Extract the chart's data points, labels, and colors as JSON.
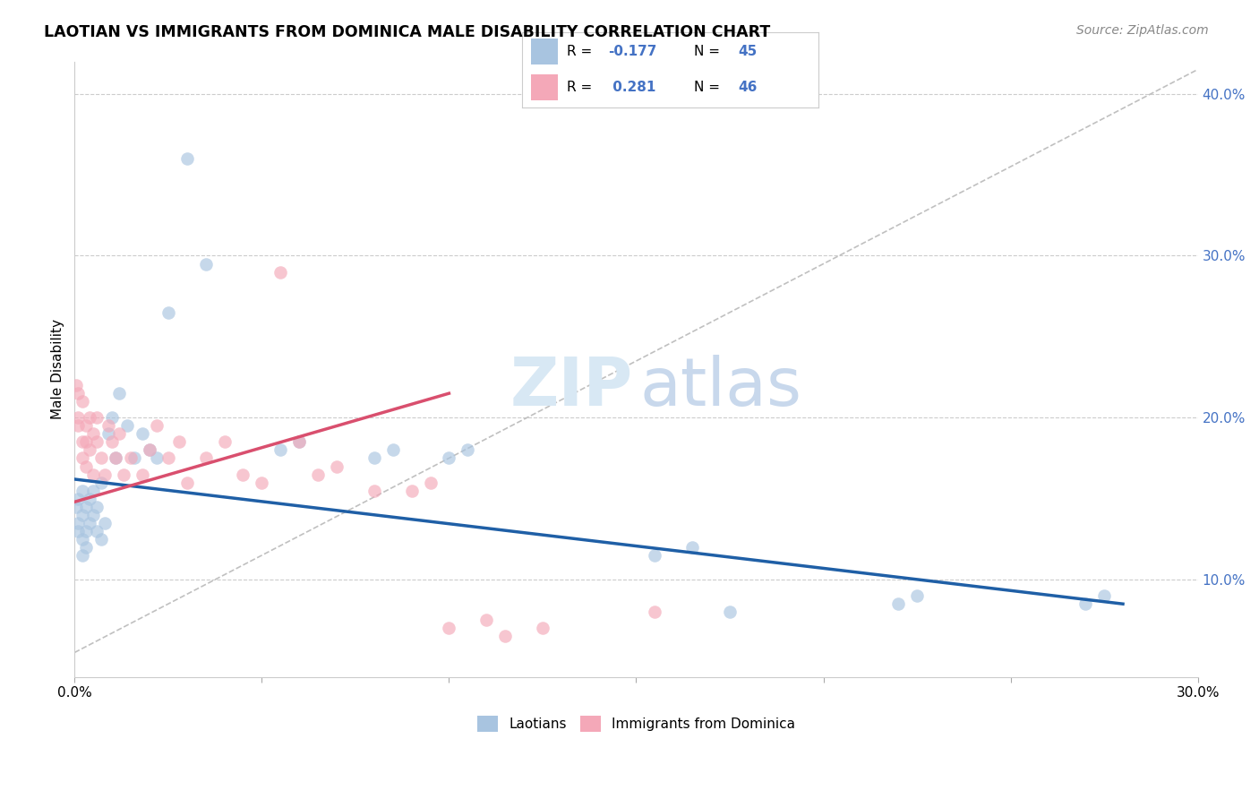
{
  "title": "LAOTIAN VS IMMIGRANTS FROM DOMINICA MALE DISABILITY CORRELATION CHART",
  "source": "Source: ZipAtlas.com",
  "ylabel": "Male Disability",
  "legend_footer1": "Laotians",
  "legend_footer2": "Immigrants from Dominica",
  "laotian_color": "#a8c4e0",
  "dominica_color": "#f4a8b8",
  "laotian_line_color": "#1f5fa6",
  "dominica_line_color": "#d94f6e",
  "xlim": [
    0.0,
    0.3
  ],
  "ylim": [
    0.04,
    0.42
  ],
  "laotian_x": [
    0.0005,
    0.001,
    0.001,
    0.001,
    0.002,
    0.002,
    0.002,
    0.002,
    0.003,
    0.003,
    0.003,
    0.004,
    0.004,
    0.005,
    0.005,
    0.006,
    0.006,
    0.007,
    0.007,
    0.008,
    0.009,
    0.01,
    0.011,
    0.012,
    0.014,
    0.016,
    0.018,
    0.02,
    0.022,
    0.025,
    0.03,
    0.035,
    0.055,
    0.06,
    0.08,
    0.085,
    0.1,
    0.105,
    0.155,
    0.165,
    0.175,
    0.22,
    0.225,
    0.27,
    0.275
  ],
  "laotian_y": [
    0.145,
    0.13,
    0.15,
    0.135,
    0.155,
    0.125,
    0.14,
    0.115,
    0.13,
    0.145,
    0.12,
    0.15,
    0.135,
    0.14,
    0.155,
    0.13,
    0.145,
    0.16,
    0.125,
    0.135,
    0.19,
    0.2,
    0.175,
    0.215,
    0.195,
    0.175,
    0.19,
    0.18,
    0.175,
    0.265,
    0.36,
    0.295,
    0.18,
    0.185,
    0.175,
    0.18,
    0.175,
    0.18,
    0.115,
    0.12,
    0.08,
    0.085,
    0.09,
    0.085,
    0.09
  ],
  "dominica_x": [
    0.0005,
    0.001,
    0.001,
    0.001,
    0.002,
    0.002,
    0.002,
    0.003,
    0.003,
    0.003,
    0.004,
    0.004,
    0.005,
    0.005,
    0.006,
    0.006,
    0.007,
    0.008,
    0.009,
    0.01,
    0.011,
    0.012,
    0.013,
    0.015,
    0.018,
    0.02,
    0.022,
    0.025,
    0.028,
    0.03,
    0.035,
    0.04,
    0.045,
    0.05,
    0.06,
    0.065,
    0.07,
    0.08,
    0.09,
    0.095,
    0.1,
    0.11,
    0.115,
    0.125,
    0.155,
    0.055
  ],
  "dominica_y": [
    0.22,
    0.2,
    0.215,
    0.195,
    0.185,
    0.21,
    0.175,
    0.195,
    0.185,
    0.17,
    0.2,
    0.18,
    0.19,
    0.165,
    0.2,
    0.185,
    0.175,
    0.165,
    0.195,
    0.185,
    0.175,
    0.19,
    0.165,
    0.175,
    0.165,
    0.18,
    0.195,
    0.175,
    0.185,
    0.16,
    0.175,
    0.185,
    0.165,
    0.16,
    0.185,
    0.165,
    0.17,
    0.155,
    0.155,
    0.16,
    0.07,
    0.075,
    0.065,
    0.07,
    0.08,
    0.29
  ],
  "lao_line_x0": 0.0,
  "lao_line_y0": 0.162,
  "lao_line_x1": 0.28,
  "lao_line_y1": 0.085,
  "dom_line_x0": 0.0,
  "dom_line_y0": 0.148,
  "dom_line_x1": 0.1,
  "dom_line_y1": 0.215,
  "ref_line_x0": 0.0,
  "ref_line_y0": 0.055,
  "ref_line_x1": 0.3,
  "ref_line_y1": 0.415
}
